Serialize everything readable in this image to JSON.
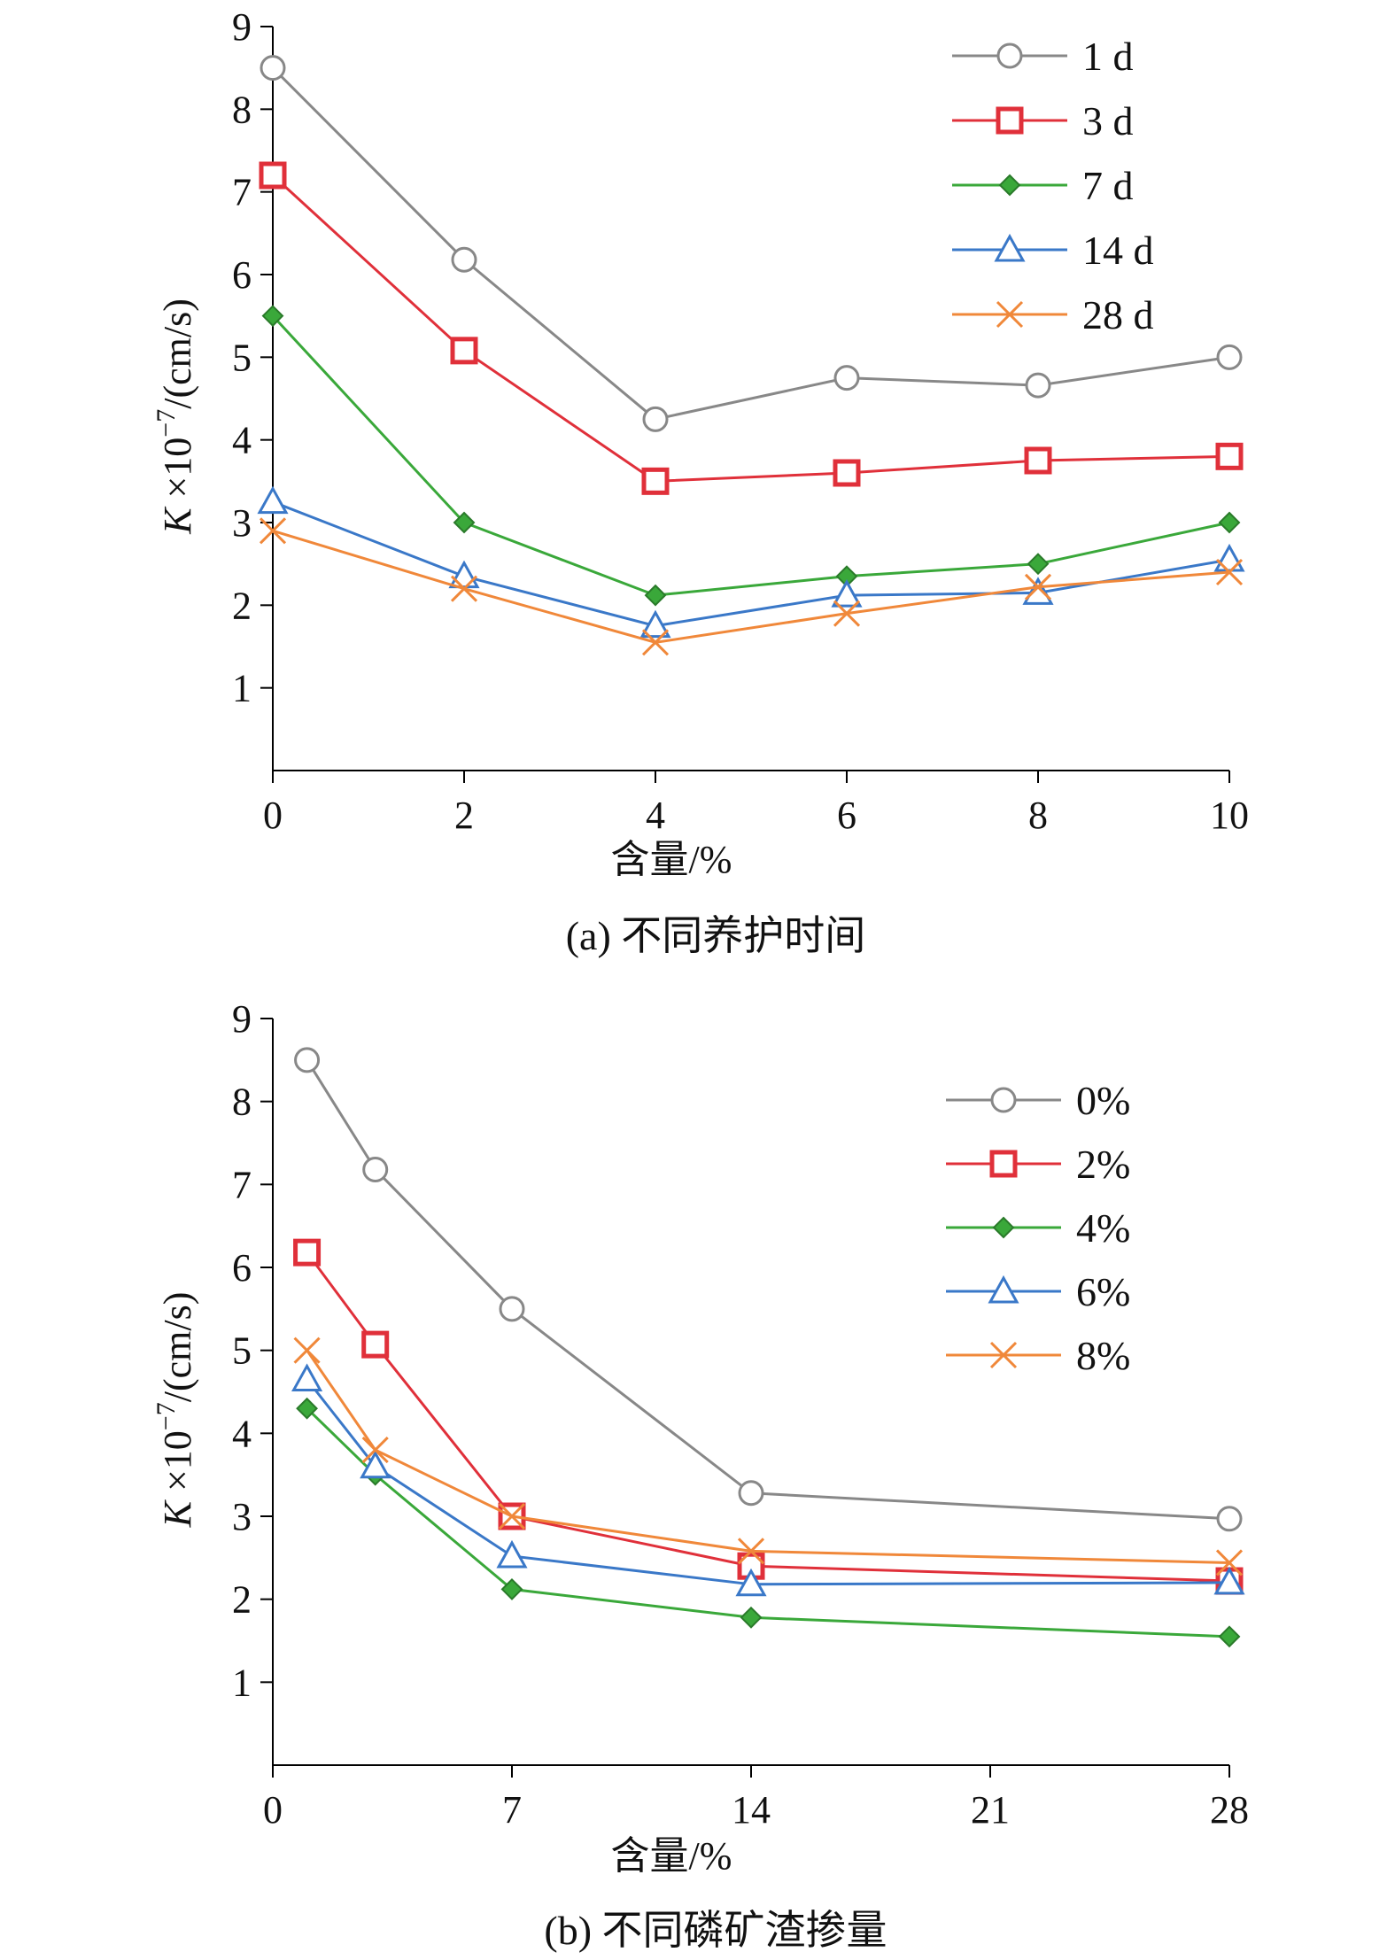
{
  "chart_data": [
    {
      "type": "line",
      "caption": "(a) 不同养护时间",
      "xlabel": "含量/%",
      "ylabel_main": "K",
      "ylabel_rest": " ×10",
      "ylabel_sup": "−7",
      "ylabel_unit": "/(cm/s)",
      "xlim": [
        0,
        10
      ],
      "ylim": [
        0,
        9
      ],
      "xticks": [
        0,
        2,
        4,
        6,
        8,
        10
      ],
      "yticks": [
        1,
        2,
        3,
        4,
        5,
        6,
        7,
        8,
        9
      ],
      "legend_position": "top-right",
      "series": [
        {
          "name": "1 d",
          "color": "#888888",
          "marker": "circle",
          "x": [
            0,
            2,
            4,
            6,
            8,
            10
          ],
          "y": [
            8.5,
            6.18,
            4.25,
            4.75,
            4.66,
            5.0
          ]
        },
        {
          "name": "3 d",
          "color": "#e0303a",
          "marker": "square",
          "x": [
            0,
            2,
            4,
            6,
            8,
            10
          ],
          "y": [
            7.2,
            5.08,
            3.5,
            3.6,
            3.75,
            3.8
          ]
        },
        {
          "name": "7 d",
          "color": "#3aa83a",
          "marker": "diamond",
          "x": [
            0,
            2,
            4,
            6,
            8,
            10
          ],
          "y": [
            5.5,
            3.0,
            2.12,
            2.35,
            2.5,
            3.0
          ]
        },
        {
          "name": "14 d",
          "color": "#3a78c8",
          "marker": "triangle",
          "x": [
            0,
            2,
            4,
            6,
            8,
            10
          ],
          "y": [
            3.25,
            2.35,
            1.75,
            2.12,
            2.15,
            2.55
          ]
        },
        {
          "name": "28 d",
          "color": "#f0883a",
          "marker": "x",
          "x": [
            0,
            2,
            4,
            6,
            8,
            10
          ],
          "y": [
            2.9,
            2.2,
            1.55,
            1.9,
            2.22,
            2.4
          ]
        }
      ]
    },
    {
      "type": "line",
      "caption": "(b) 不同磷矿渣掺量",
      "xlabel": "含量/%",
      "ylabel_main": "K",
      "ylabel_rest": " ×10",
      "ylabel_sup": "−7",
      "ylabel_unit": "/(cm/s)",
      "xlim": [
        0,
        28
      ],
      "ylim": [
        0,
        9
      ],
      "xticks": [
        0,
        7,
        14,
        21,
        28
      ],
      "yticks": [
        1,
        2,
        3,
        4,
        5,
        6,
        7,
        8,
        9
      ],
      "legend_position": "top-right",
      "series": [
        {
          "name": "0%",
          "color": "#888888",
          "marker": "circle",
          "x": [
            1,
            3,
            7,
            14,
            28
          ],
          "y": [
            8.5,
            7.18,
            5.5,
            3.28,
            2.97
          ]
        },
        {
          "name": "2%",
          "color": "#e0303a",
          "marker": "square",
          "x": [
            1,
            3,
            7,
            14,
            28
          ],
          "y": [
            6.18,
            5.07,
            3.0,
            2.4,
            2.22
          ]
        },
        {
          "name": "4%",
          "color": "#3aa83a",
          "marker": "diamond",
          "x": [
            1,
            3,
            7,
            14,
            28
          ],
          "y": [
            4.3,
            3.5,
            2.12,
            1.78,
            1.55
          ]
        },
        {
          "name": "6%",
          "color": "#3a78c8",
          "marker": "triangle",
          "x": [
            1,
            3,
            7,
            14,
            28
          ],
          "y": [
            4.65,
            3.6,
            2.52,
            2.18,
            2.2
          ]
        },
        {
          "name": "8%",
          "color": "#f0883a",
          "marker": "x",
          "x": [
            1,
            3,
            7,
            14,
            28
          ],
          "y": [
            5.0,
            3.8,
            3.0,
            2.58,
            2.44
          ]
        }
      ]
    }
  ]
}
